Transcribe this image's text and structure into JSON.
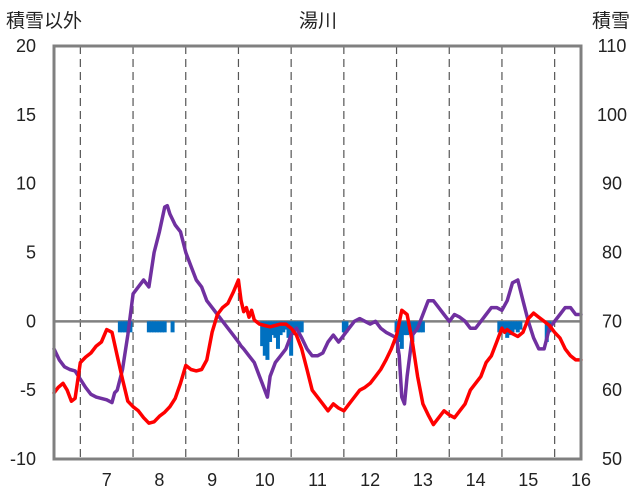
{
  "chart_data": {
    "type": "line",
    "title": "湯川",
    "y_left_label": "積雪以外",
    "y_right_label": "積雪",
    "x_ticks": [
      "7",
      "8",
      "9",
      "10",
      "11",
      "12",
      "13",
      "14",
      "15",
      "16"
    ],
    "x_range": [
      6.5,
      16.5
    ],
    "y_left_range": [
      -10,
      20
    ],
    "y_left_ticks": [
      "-10",
      "-5",
      "0",
      "5",
      "10",
      "15",
      "20"
    ],
    "y_right_range": [
      50,
      110
    ],
    "y_right_ticks": [
      "50",
      "60",
      "70",
      "80",
      "90",
      "100",
      "110"
    ],
    "grid": "vertical dashed lines at day boundaries, horizontal zero line",
    "colors": {
      "red_series": "#ff0000",
      "purple_series": "#7030a0",
      "blue_bars": "#0070c0",
      "frame": "#808080"
    },
    "red_series": {
      "axis": "left",
      "x": [
        6.5,
        6.58,
        6.67,
        6.75,
        6.83,
        6.9,
        7.0,
        7.1,
        7.2,
        7.3,
        7.4,
        7.5,
        7.6,
        7.7,
        7.8,
        7.9,
        8.0,
        8.1,
        8.2,
        8.3,
        8.4,
        8.5,
        8.6,
        8.7,
        8.8,
        8.9,
        9.0,
        9.1,
        9.2,
        9.3,
        9.4,
        9.5,
        9.6,
        9.7,
        9.8,
        9.9,
        10.0,
        10.05,
        10.1,
        10.15,
        10.2,
        10.25,
        10.3,
        10.4,
        10.5,
        10.6,
        10.7,
        10.8,
        10.9,
        11.0,
        11.1,
        11.2,
        11.3,
        11.4,
        11.5,
        11.6,
        11.7,
        11.8,
        11.9,
        12.0,
        12.1,
        12.2,
        12.3,
        12.4,
        12.5,
        12.6,
        12.7,
        12.8,
        12.9,
        13.0,
        13.1,
        13.2,
        13.3,
        13.4,
        13.5,
        13.6,
        13.7,
        13.8,
        13.9,
        14.0,
        14.1,
        14.2,
        14.3,
        14.4,
        14.5,
        14.6,
        14.7,
        14.8,
        14.9,
        15.0,
        15.05,
        15.1,
        15.2,
        15.3,
        15.4,
        15.5,
        15.6,
        15.7,
        15.8,
        15.9,
        16.0,
        16.1,
        16.2,
        16.3,
        16.4,
        16.5
      ],
      "y": [
        -5.2,
        -4.8,
        -4.5,
        -5.0,
        -5.8,
        -5.6,
        -3.0,
        -2.6,
        -2.3,
        -1.8,
        -1.5,
        -0.6,
        -0.8,
        -2.5,
        -4.2,
        -5.8,
        -6.2,
        -6.5,
        -7.0,
        -7.4,
        -7.3,
        -6.9,
        -6.6,
        -6.2,
        -5.6,
        -4.5,
        -3.2,
        -3.5,
        -3.6,
        -3.5,
        -2.8,
        -0.8,
        0.5,
        1.0,
        1.3,
        2.1,
        3.0,
        1.5,
        0.7,
        1.0,
        0.3,
        0.8,
        0.1,
        -0.2,
        -0.3,
        -0.4,
        -0.3,
        -0.2,
        -0.2,
        -0.5,
        -1.0,
        -2.0,
        -3.5,
        -5.0,
        -5.5,
        -6.0,
        -6.5,
        -6.0,
        -6.3,
        -6.5,
        -6.0,
        -5.5,
        -5.0,
        -4.8,
        -4.5,
        -4.0,
        -3.5,
        -2.8,
        -2.0,
        -1.0,
        0.8,
        0.5,
        -1.5,
        -4.0,
        -6.0,
        -6.8,
        -7.5,
        -7.0,
        -6.5,
        -6.8,
        -7.0,
        -6.5,
        -6.0,
        -5.0,
        -4.5,
        -4.0,
        -3.0,
        -2.5,
        -1.5,
        -0.5,
        -0.8,
        -0.6,
        -0.9,
        -1.1,
        -0.8,
        0.2,
        0.6,
        0.3,
        0.0,
        -0.3,
        -0.8,
        -1.2,
        -2.0,
        -2.5,
        -2.8,
        -2.8
      ]
    },
    "purple_series": {
      "axis": "left",
      "x": [
        6.5,
        6.6,
        6.7,
        6.8,
        6.9,
        7.0,
        7.1,
        7.2,
        7.3,
        7.4,
        7.5,
        7.6,
        7.65,
        7.7,
        7.8,
        7.9,
        8.0,
        8.1,
        8.2,
        8.3,
        8.4,
        8.5,
        8.6,
        8.65,
        8.7,
        8.8,
        8.9,
        9.0,
        9.1,
        9.2,
        9.3,
        9.4,
        9.5,
        9.6,
        9.7,
        9.8,
        9.9,
        10.0,
        10.05,
        10.1,
        10.2,
        10.3,
        10.4,
        10.45,
        10.5,
        10.55,
        10.6,
        10.7,
        10.8,
        10.9,
        11.0,
        11.1,
        11.2,
        11.3,
        11.4,
        11.5,
        11.6,
        11.7,
        11.8,
        11.9,
        12.0,
        12.1,
        12.2,
        12.3,
        12.4,
        12.5,
        12.6,
        12.7,
        12.8,
        12.9,
        13.0,
        13.05,
        13.1,
        13.15,
        13.2,
        13.3,
        13.4,
        13.5,
        13.6,
        13.7,
        13.8,
        13.9,
        14.0,
        14.1,
        14.2,
        14.3,
        14.4,
        14.5,
        14.6,
        14.7,
        14.8,
        14.9,
        15.0,
        15.1,
        15.2,
        15.3,
        15.4,
        15.5,
        15.6,
        15.7,
        15.8,
        15.9,
        16.0,
        16.1,
        16.2,
        16.3,
        16.4,
        16.5
      ],
      "y": [
        -2.0,
        -2.8,
        -3.3,
        -3.5,
        -3.6,
        -4.2,
        -4.8,
        -5.3,
        -5.5,
        -5.6,
        -5.7,
        -5.9,
        -5.2,
        -5.0,
        -3.5,
        -1.0,
        2.0,
        2.5,
        3.0,
        2.5,
        5.0,
        6.5,
        8.3,
        8.4,
        7.8,
        7.0,
        6.5,
        5.0,
        4.0,
        3.0,
        2.5,
        1.5,
        1.0,
        0.5,
        0.0,
        -0.5,
        -1.0,
        -1.5,
        -1.8,
        -2.0,
        -2.5,
        -3.0,
        -4.0,
        -4.5,
        -5.0,
        -5.5,
        -4.0,
        -3.0,
        -2.5,
        -2.0,
        -1.0,
        -0.5,
        -1.2,
        -2.0,
        -2.5,
        -2.5,
        -2.3,
        -1.5,
        -1.0,
        -1.5,
        -1.0,
        -0.5,
        0.0,
        0.2,
        0.0,
        -0.2,
        0.0,
        -0.5,
        -0.8,
        -1.0,
        -1.2,
        -2.5,
        -5.5,
        -6.0,
        -4.0,
        -1.0,
        -0.5,
        0.5,
        1.5,
        1.5,
        1.0,
        0.5,
        0.0,
        0.5,
        0.3,
        0.0,
        -0.5,
        -0.5,
        0.0,
        0.5,
        1.0,
        1.0,
        0.8,
        1.5,
        2.8,
        3.0,
        1.5,
        0.0,
        -1.2,
        -2.0,
        -2.0,
        -0.5,
        0.0,
        0.5,
        1.0,
        1.0,
        0.5,
        0.5
      ]
    },
    "blue_bars": {
      "axis": "left",
      "description_values": "hourly bars below zero",
      "x": [
        7.75,
        7.8,
        7.85,
        7.9,
        7.95,
        8.3,
        8.35,
        8.4,
        8.45,
        8.5,
        8.55,
        8.6,
        8.75,
        10.45,
        10.5,
        10.55,
        10.6,
        10.65,
        10.7,
        10.75,
        10.8,
        10.85,
        10.9,
        10.95,
        11.0,
        11.05,
        11.1,
        11.15,
        11.2,
        12.0,
        12.05,
        13.0,
        13.05,
        13.1,
        13.15,
        13.2,
        13.25,
        13.3,
        13.35,
        13.4,
        13.45,
        13.5,
        14.95,
        15.0,
        15.05,
        15.1,
        15.15,
        15.2,
        15.25,
        15.3,
        15.35,
        15.85,
        15.9
      ],
      "y": [
        -0.8,
        -0.8,
        -0.8,
        -0.8,
        -0.8,
        -0.8,
        -0.8,
        -0.8,
        -0.8,
        -0.8,
        -0.8,
        -0.8,
        -0.8,
        -1.8,
        -2.5,
        -2.8,
        -1.5,
        -1.0,
        -1.2,
        -2.0,
        -1.0,
        -0.8,
        -0.6,
        -1.2,
        -2.5,
        -1.0,
        -0.6,
        -0.8,
        -0.8,
        -0.8,
        -0.8,
        -0.8,
        -1.5,
        -2.0,
        -1.0,
        -1.0,
        -0.8,
        -1.5,
        -0.8,
        -0.8,
        -0.8,
        -0.8,
        -0.8,
        -0.6,
        -0.8,
        -1.2,
        -1.0,
        -0.8,
        -0.6,
        -0.8,
        -0.6,
        -1.5,
        -0.8
      ]
    }
  }
}
